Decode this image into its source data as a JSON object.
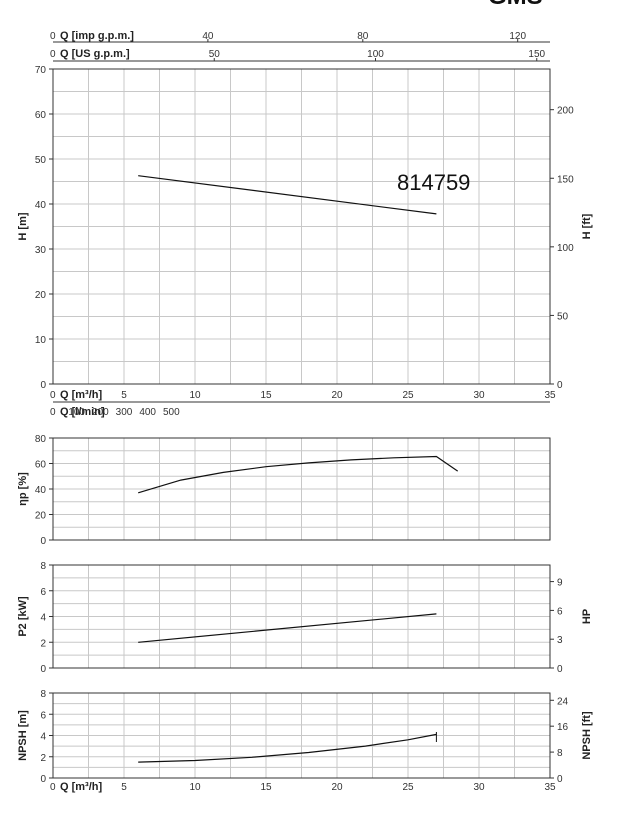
{
  "corner_text": "GMS",
  "model_label": "814759",
  "flow_scales": {
    "imp_gpm": {
      "label": "Q [imp g.p.m.]",
      "zero": "0",
      "ticks": [
        40,
        80,
        120
      ]
    },
    "us_gpm": {
      "label": "Q [US g.p.m.]",
      "zero": "0",
      "ticks": [
        50,
        100,
        150
      ]
    },
    "m3h_mid": {
      "label": "Q [m³/h]",
      "zero": "0",
      "ticks": [
        5,
        10,
        15,
        20,
        25,
        30,
        35
      ]
    },
    "lmin": {
      "label": "Q [l/min]",
      "zero": "0",
      "ticks": [
        100,
        200,
        300,
        400,
        500
      ]
    },
    "m3h_bottom": {
      "label": "Q [m³/h]",
      "zero": "0",
      "ticks": [
        5,
        10,
        15,
        20,
        25,
        30,
        35
      ]
    }
  },
  "chart_data": [
    {
      "id": "head",
      "type": "line",
      "ylabel": "H [m]",
      "y2label": "H [ft]",
      "xlim": [
        0,
        35
      ],
      "ylim": [
        0,
        70
      ],
      "yticks": [
        0,
        10,
        20,
        30,
        40,
        50,
        60,
        70
      ],
      "y2ticks": [
        0,
        50,
        100,
        150,
        200
      ],
      "series": [
        {
          "x": [
            6,
            27
          ],
          "y": [
            46.3,
            37.8
          ]
        }
      ]
    },
    {
      "id": "efficiency",
      "type": "line",
      "ylabel": "ηp [%]",
      "xlim": [
        0,
        35
      ],
      "ylim": [
        0,
        80
      ],
      "yticks": [
        0,
        20,
        40,
        60,
        80
      ],
      "series": [
        {
          "x": [
            6,
            9,
            12,
            15,
            18,
            21,
            24,
            27,
            28.5
          ],
          "y": [
            37,
            47,
            53,
            57.5,
            60.5,
            62.8,
            64.5,
            65.5,
            54
          ]
        }
      ]
    },
    {
      "id": "power",
      "type": "line",
      "ylabel": "P2 [kW]",
      "y2label": "HP",
      "xlim": [
        0,
        35
      ],
      "ylim": [
        0,
        8
      ],
      "yticks": [
        0,
        2,
        4,
        6,
        8
      ],
      "y2ticks": [
        0,
        3,
        6,
        9
      ],
      "series": [
        {
          "x": [
            6,
            27
          ],
          "y": [
            2.0,
            4.2
          ]
        }
      ]
    },
    {
      "id": "npsh",
      "type": "line",
      "ylabel": "NPSH [m]",
      "y2label": "NPSH [ft]",
      "xlim": [
        0,
        35
      ],
      "ylim": [
        0,
        8
      ],
      "yticks": [
        0,
        2,
        4,
        6,
        8
      ],
      "y2ticks": [
        0,
        8,
        16,
        24
      ],
      "series": [
        {
          "x": [
            6,
            10,
            14,
            18,
            22,
            25,
            27
          ],
          "y": [
            1.5,
            1.65,
            1.95,
            2.4,
            3.0,
            3.6,
            4.1
          ]
        }
      ]
    }
  ]
}
